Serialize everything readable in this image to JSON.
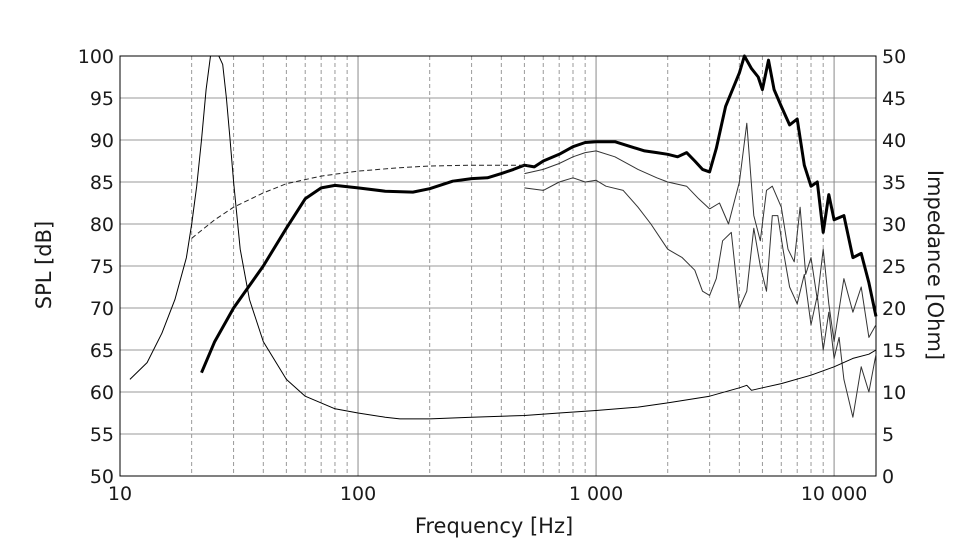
{
  "chart_data": {
    "type": "line",
    "title": "",
    "xlabel": "Frequency [Hz]",
    "ylabel": "SPL [dB]",
    "y2label": "Impedance [Ohm]",
    "x_scale": "log",
    "xlim": [
      10,
      15000
    ],
    "ylim": [
      50,
      100
    ],
    "y2lim": [
      0,
      50
    ],
    "grid": true,
    "x_tick_values": [
      10,
      100,
      1000,
      10000
    ],
    "x_tick_labels": [
      "10",
      "100",
      "1 000",
      "10 000"
    ],
    "y_ticks": [
      50,
      55,
      60,
      65,
      70,
      75,
      80,
      85,
      90,
      95,
      100
    ],
    "y_tick_labels": [
      "50",
      "55",
      "60",
      "65",
      "70",
      "75",
      "80",
      "85",
      "90",
      "95",
      "100"
    ],
    "y2_ticks": [
      0,
      5,
      10,
      15,
      20,
      25,
      30,
      35,
      40,
      45,
      50
    ],
    "y2_tick_labels": [
      "0",
      "5",
      "10",
      "15",
      "20",
      "25",
      "30",
      "35",
      "40",
      "45",
      "50"
    ],
    "series": [
      {
        "axis": "left",
        "stroke": "#000000",
        "width": 3,
        "dash": "",
        "x": [
          22,
          25,
          30,
          40,
          50,
          60,
          70,
          80,
          100,
          130,
          170,
          200,
          250,
          300,
          350,
          400,
          450,
          500,
          550,
          600,
          700,
          800,
          900,
          1000,
          1200,
          1400,
          1600,
          1800,
          2000,
          2200,
          2400,
          2600,
          2800,
          3000,
          3200,
          3500,
          4000,
          4200,
          4500,
          4800,
          5000,
          5300,
          5600,
          6000,
          6500,
          7000,
          7500,
          8000,
          8500,
          9000,
          9500,
          10000,
          11000,
          12000,
          13000,
          14000,
          15000
        ],
        "y": [
          62.3,
          66,
          70,
          75,
          79.5,
          83,
          84.3,
          84.6,
          84.3,
          83.9,
          83.8,
          84.2,
          85.1,
          85.4,
          85.5,
          86,
          86.5,
          87,
          86.8,
          87.5,
          88.3,
          89.2,
          89.7,
          89.8,
          89.8,
          89.2,
          88.7,
          88.5,
          88.3,
          88,
          88.5,
          87.5,
          86.5,
          86.2,
          89,
          94,
          98,
          100,
          98.5,
          97.5,
          96,
          99.5,
          96,
          94,
          91.8,
          92.5,
          87,
          84.5,
          85,
          79,
          83.5,
          80.5,
          81,
          76,
          76.5,
          73,
          69
        ]
      },
      {
        "axis": "left",
        "stroke": "#333333",
        "width": 1,
        "dash": "",
        "x": [
          500,
          600,
          700,
          800,
          900,
          1000,
          1200,
          1500,
          1800,
          2000,
          2400,
          2700,
          3000,
          3300,
          3600,
          4000,
          4300,
          4600,
          4900,
          5200,
          5500,
          6000,
          6400,
          6800,
          7200,
          7600,
          8000,
          8500,
          9000,
          9500,
          10000,
          11000,
          12000,
          13000,
          14000,
          15000
        ],
        "y": [
          86,
          86.5,
          87.2,
          88,
          88.5,
          88.7,
          88,
          86.5,
          85.5,
          85,
          84.5,
          83,
          81.8,
          82.5,
          80,
          85,
          92,
          81,
          78,
          84,
          84.5,
          82,
          77,
          75.5,
          82,
          74,
          76,
          71,
          77,
          70.5,
          66,
          73.5,
          69.5,
          72.5,
          66.5,
          68
        ]
      },
      {
        "axis": "left",
        "stroke": "#333333",
        "width": 1,
        "dash": "",
        "x": [
          500,
          600,
          700,
          800,
          900,
          1000,
          1100,
          1300,
          1500,
          1700,
          2000,
          2300,
          2600,
          2800,
          3000,
          3200,
          3400,
          3700,
          4000,
          4300,
          4600,
          4900,
          5200,
          5500,
          5800,
          6100,
          6500,
          7000,
          7500,
          8000,
          8500,
          9000,
          9500,
          10000,
          10500,
          11000,
          12000,
          13000,
          14000,
          15000
        ],
        "y": [
          84.3,
          84,
          85,
          85.5,
          85,
          85.2,
          84.5,
          84,
          82,
          80,
          77,
          76,
          74.5,
          72,
          71.5,
          73.5,
          78,
          79,
          70,
          72,
          79.5,
          75,
          72,
          81,
          81,
          77,
          72.5,
          70.5,
          74,
          68,
          71.5,
          65,
          69.5,
          64,
          66.5,
          61.5,
          57,
          63,
          60,
          64.5
        ]
      },
      {
        "axis": "left",
        "stroke": "#222222",
        "width": 1,
        "dash": "5,3",
        "x": [
          20,
          25,
          30,
          40,
          50,
          70,
          100,
          150,
          200,
          300,
          400,
          500,
          520
        ],
        "y": [
          78.3,
          80.5,
          82,
          83.7,
          84.8,
          85.7,
          86.3,
          86.7,
          86.9,
          87,
          87,
          87,
          87
        ]
      },
      {
        "axis": "right",
        "stroke": "#000000",
        "width": 1,
        "dash": "",
        "x": [
          11,
          13,
          15,
          17,
          19,
          20,
          21,
          22,
          23,
          24,
          25,
          26,
          27,
          28,
          29,
          30,
          32,
          35,
          40,
          50,
          60,
          80,
          100,
          130,
          150,
          200,
          300,
          500,
          700,
          1000,
          1500,
          2000,
          3000,
          4000,
          4300,
          4500,
          5000,
          6000,
          8000,
          10000,
          12000,
          14000,
          15000
        ],
        "y": [
          11.5,
          13.5,
          17,
          21,
          26,
          30,
          34.5,
          40,
          46,
          50,
          50,
          50,
          49,
          45,
          40,
          35,
          27,
          21,
          16,
          11.5,
          9.5,
          8,
          7.5,
          7,
          6.8,
          6.8,
          7,
          7.2,
          7.5,
          7.8,
          8.2,
          8.7,
          9.5,
          10.5,
          10.8,
          10.2,
          10.5,
          11,
          12,
          13,
          14,
          14.5,
          15
        ]
      }
    ]
  }
}
